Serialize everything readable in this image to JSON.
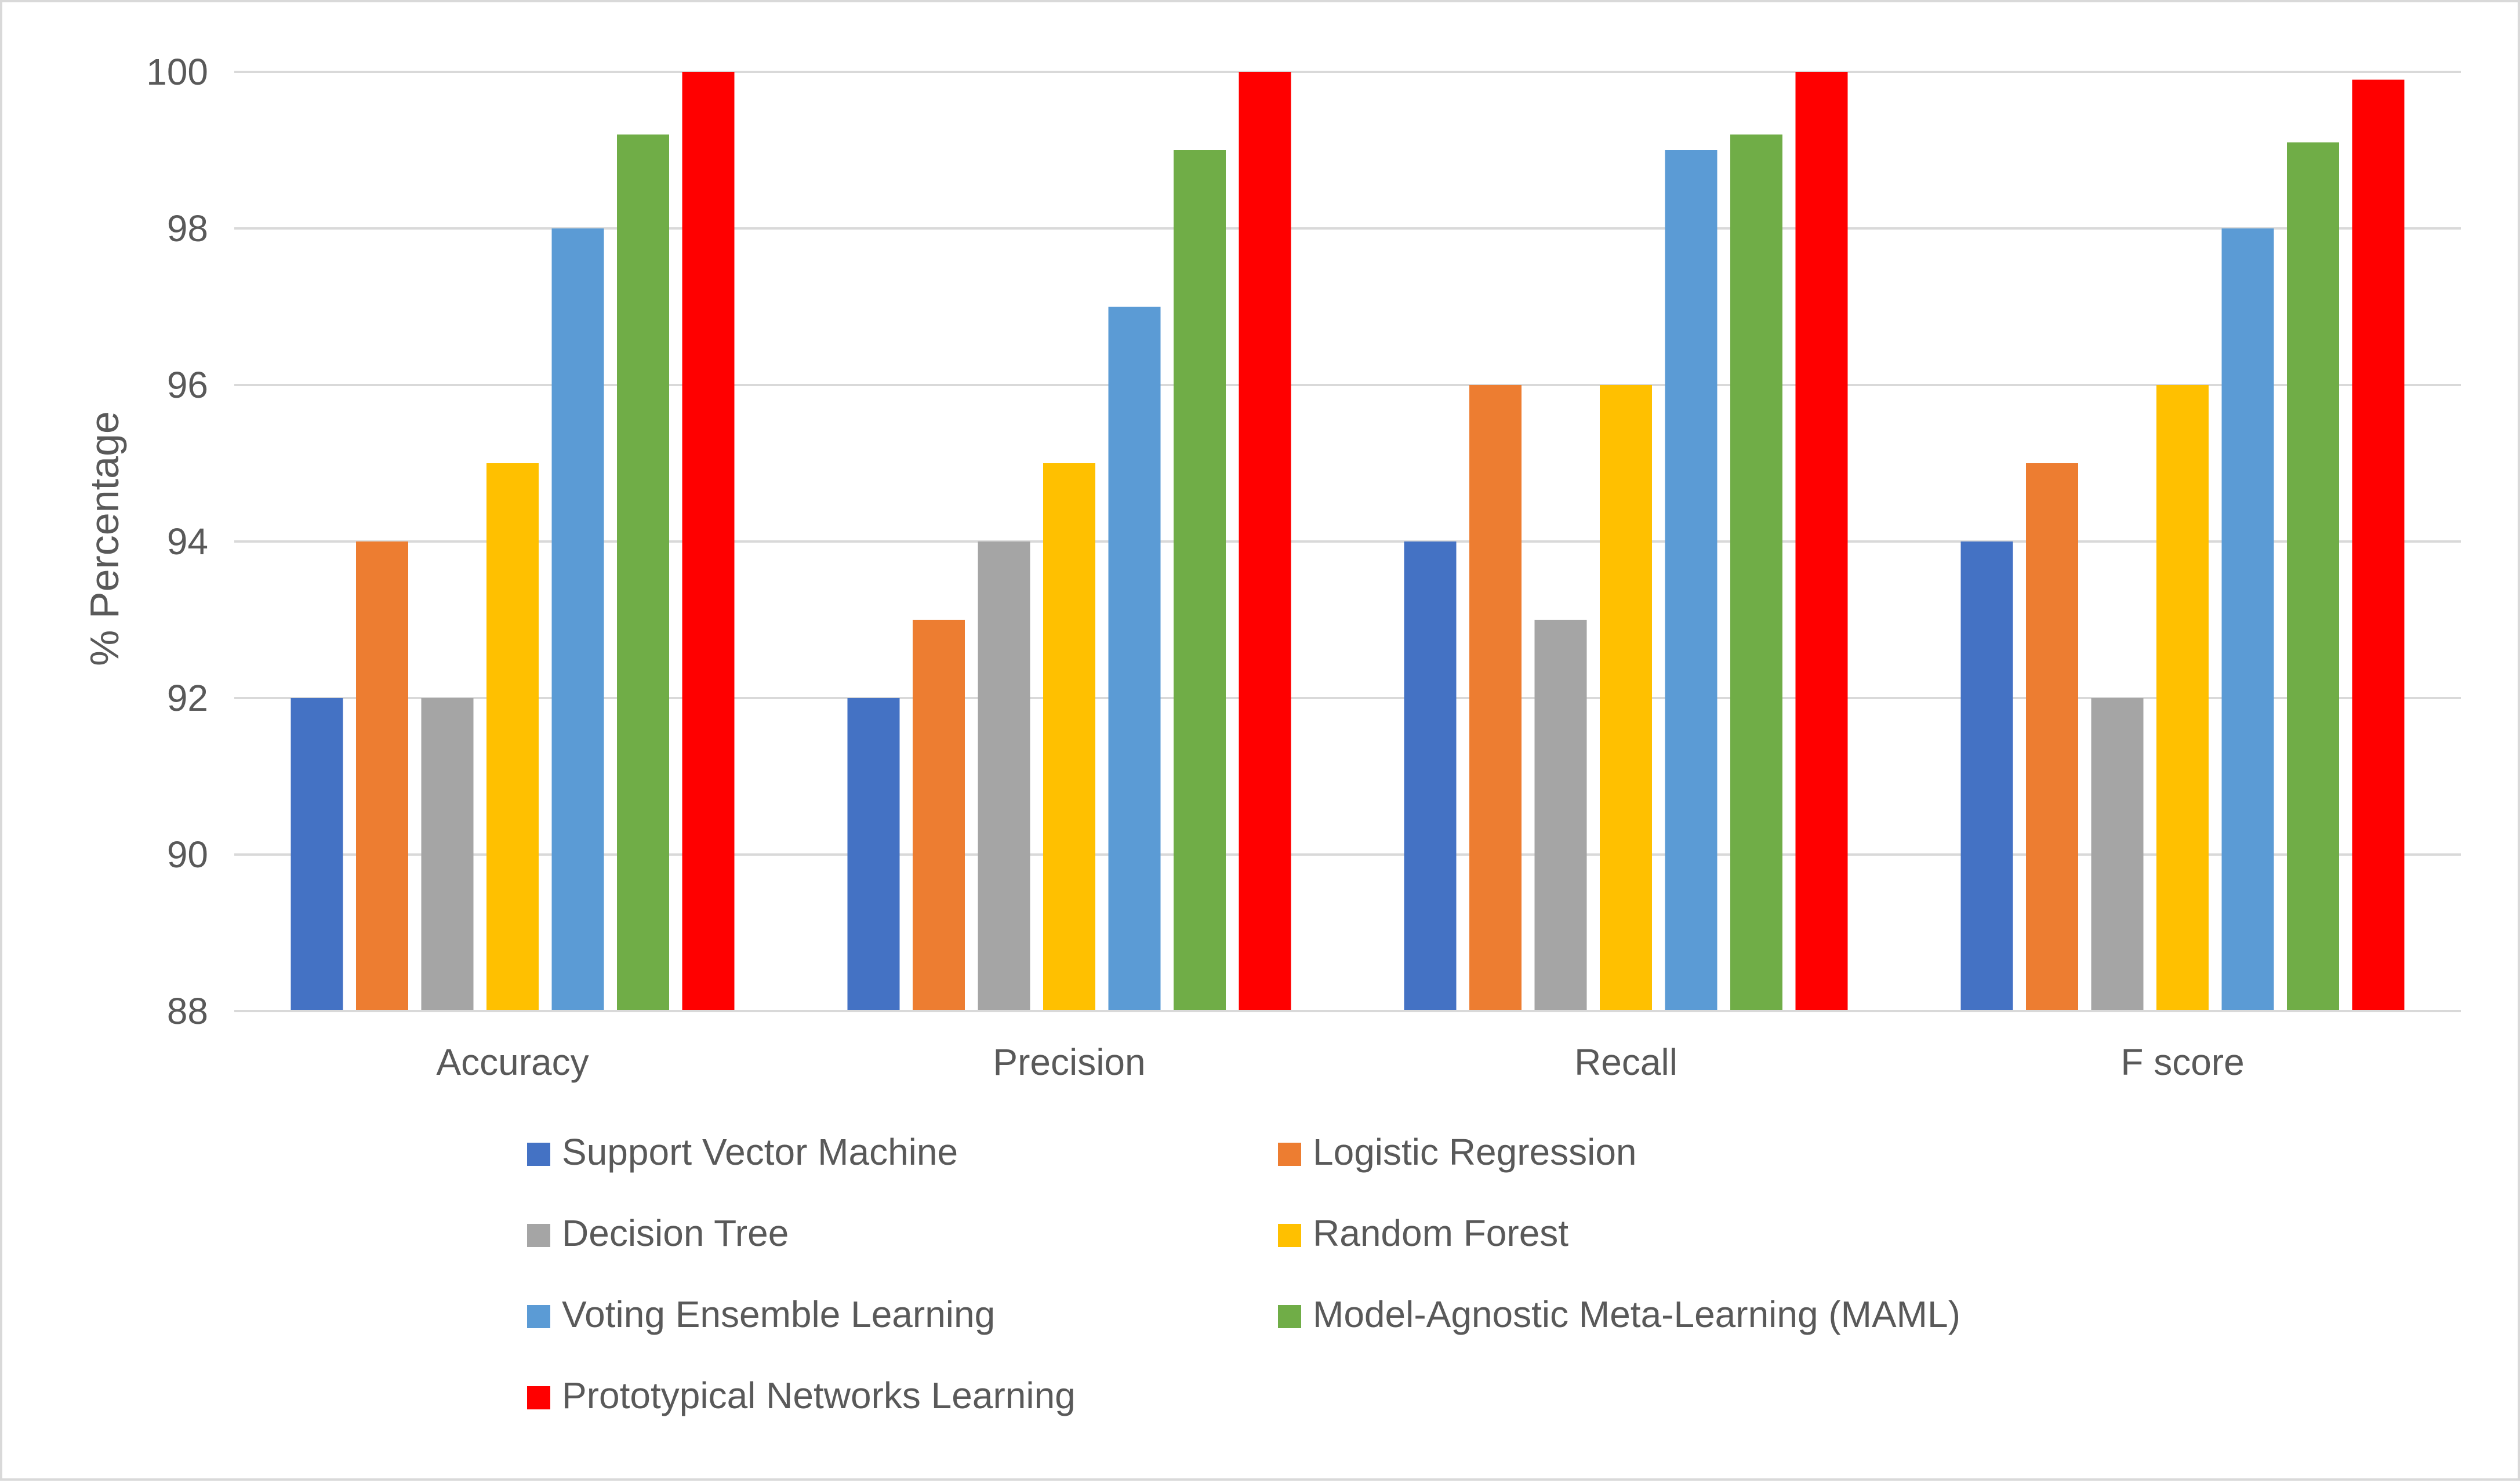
{
  "chart_data": {
    "type": "bar",
    "title": "",
    "xlabel": "",
    "ylabel": "% Percentage",
    "ylim": [
      88,
      100
    ],
    "yticks": [
      88,
      90,
      92,
      94,
      96,
      98,
      100
    ],
    "grid": true,
    "legend_position": "bottom",
    "categories": [
      "Accuracy",
      "Precision",
      "Recall",
      "F score"
    ],
    "series": [
      {
        "name": "Support Vector Machine",
        "color": "#4472c4",
        "values": [
          92,
          92,
          94,
          94
        ]
      },
      {
        "name": "Logistic Regression",
        "color": "#ed7d31",
        "values": [
          94,
          93,
          96,
          95
        ]
      },
      {
        "name": "Decision Tree",
        "color": "#a5a5a5",
        "values": [
          92,
          94,
          93,
          92
        ]
      },
      {
        "name": "Random Forest",
        "color": "#ffc000",
        "values": [
          95,
          95,
          96,
          96
        ]
      },
      {
        "name": "Voting Ensemble Learning",
        "color": "#5b9bd5",
        "values": [
          98,
          97,
          99,
          98
        ]
      },
      {
        "name": "Model-Agnostic Meta-Learning (MAML)",
        "color": "#70ad47",
        "values": [
          99.2,
          99,
          99.2,
          99.1
        ]
      },
      {
        "name": "Prototypical Networks Learning",
        "color": "#ff0000",
        "values": [
          100,
          100,
          100,
          99.9
        ]
      }
    ]
  }
}
